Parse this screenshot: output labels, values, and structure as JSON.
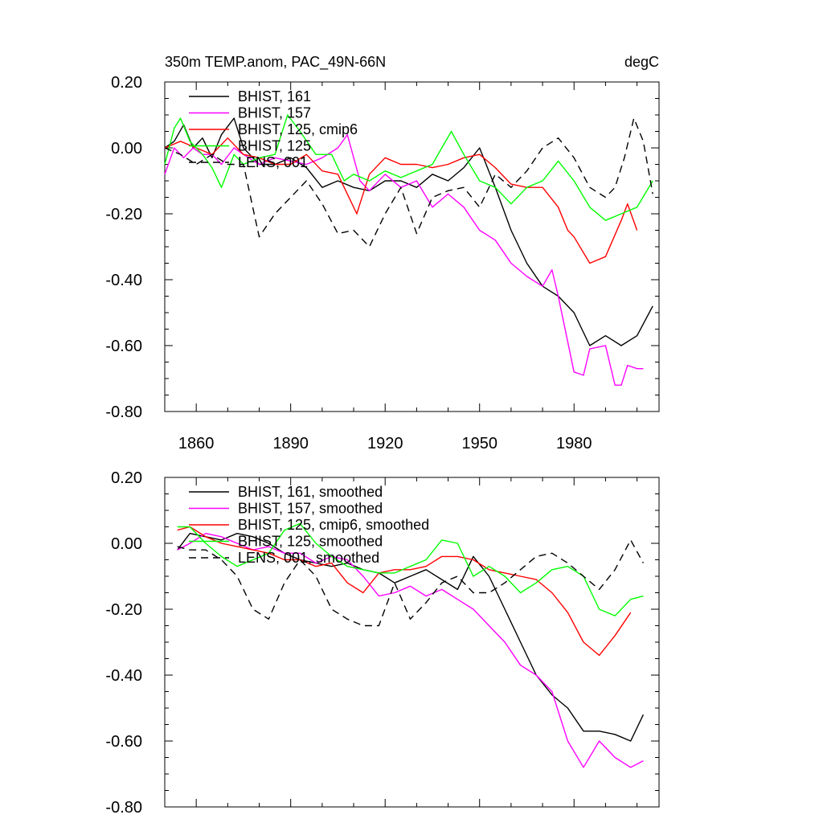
{
  "colors": {
    "black": "#000000",
    "magenta": "#ff00ff",
    "red": "#ff0000",
    "green": "#00ff00"
  },
  "chart_data": [
    {
      "type": "line",
      "title": "350m TEMP.anom, PAC_49N-66N",
      "units": "degC",
      "xlim": [
        1850,
        2007
      ],
      "ylim": [
        -0.8,
        0.2
      ],
      "xticks": [
        "1860",
        "1890",
        "1920",
        "1950",
        "1980"
      ],
      "yticks": [
        "0.20",
        "0.00",
        "-0.20",
        "-0.40",
        "-0.60",
        "-0.80"
      ],
      "legend_position": "top-left",
      "series": [
        {
          "name": "BHIST, 161",
          "color": "#000000",
          "dash": false,
          "x": [
            1850,
            1853,
            1856,
            1859,
            1862,
            1865,
            1868,
            1872,
            1875,
            1880,
            1885,
            1890,
            1895,
            1900,
            1905,
            1910,
            1915,
            1920,
            1925,
            1930,
            1935,
            1940,
            1945,
            1950,
            1955,
            1960,
            1965,
            1970,
            1975,
            1980,
            1985,
            1990,
            1995,
            2000,
            2005
          ],
          "y": [
            0.0,
            0.02,
            0.07,
            0.0,
            0.03,
            -0.03,
            0.04,
            0.09,
            0.0,
            -0.05,
            -0.05,
            -0.03,
            -0.06,
            -0.12,
            -0.1,
            -0.12,
            -0.13,
            -0.1,
            -0.1,
            -0.12,
            -0.08,
            -0.1,
            -0.06,
            0.0,
            -0.12,
            -0.25,
            -0.35,
            -0.42,
            -0.45,
            -0.5,
            -0.6,
            -0.57,
            -0.6,
            -0.57,
            -0.48
          ]
        },
        {
          "name": "BHIST, 157",
          "color": "#ff00ff",
          "dash": false,
          "x": [
            1850,
            1853,
            1856,
            1859,
            1862,
            1865,
            1868,
            1872,
            1875,
            1880,
            1885,
            1890,
            1895,
            1900,
            1905,
            1908,
            1912,
            1915,
            1920,
            1925,
            1930,
            1935,
            1940,
            1945,
            1950,
            1955,
            1960,
            1965,
            1970,
            1973,
            1975,
            1980,
            1983,
            1985,
            1990,
            1993,
            1995,
            1997,
            2000,
            2002
          ],
          "y": [
            -0.08,
            0.0,
            -0.03,
            0.0,
            -0.02,
            -0.02,
            -0.05,
            0.0,
            -0.02,
            -0.05,
            -0.03,
            -0.04,
            -0.05,
            -0.03,
            0.0,
            0.04,
            -0.1,
            -0.13,
            -0.08,
            -0.12,
            -0.1,
            -0.18,
            -0.14,
            -0.18,
            -0.25,
            -0.28,
            -0.35,
            -0.39,
            -0.42,
            -0.37,
            -0.45,
            -0.68,
            -0.69,
            -0.61,
            -0.6,
            -0.72,
            -0.72,
            -0.66,
            -0.67,
            -0.67
          ]
        },
        {
          "name": "BHIST, 125, cmip6",
          "color": "#ff0000",
          "dash": false,
          "x": [
            1850,
            1855,
            1860,
            1865,
            1870,
            1875,
            1880,
            1885,
            1890,
            1895,
            1900,
            1905,
            1908,
            1911,
            1915,
            1920,
            1925,
            1930,
            1935,
            1940,
            1945,
            1950,
            1955,
            1960,
            1965,
            1970,
            1975,
            1978,
            1980,
            1985,
            1990,
            1995,
            1997,
            2000
          ],
          "y": [
            0.0,
            0.02,
            0.0,
            -0.02,
            0.03,
            -0.02,
            -0.03,
            -0.05,
            -0.05,
            -0.02,
            -0.07,
            -0.08,
            -0.14,
            -0.2,
            -0.08,
            -0.03,
            -0.05,
            -0.05,
            -0.06,
            -0.05,
            -0.03,
            -0.02,
            -0.06,
            -0.11,
            -0.12,
            -0.12,
            -0.18,
            -0.25,
            -0.27,
            -0.35,
            -0.33,
            -0.22,
            -0.17,
            -0.25
          ]
        },
        {
          "name": "BHIST, 125",
          "color": "#00ff00",
          "dash": false,
          "x": [
            1850,
            1853,
            1855,
            1858,
            1862,
            1865,
            1868,
            1872,
            1875,
            1880,
            1885,
            1889,
            1893,
            1898,
            1903,
            1907,
            1910,
            1915,
            1920,
            1925,
            1930,
            1935,
            1938,
            1941,
            1945,
            1950,
            1955,
            1960,
            1965,
            1970,
            1975,
            1980,
            1985,
            1990,
            1995,
            2000,
            2005
          ],
          "y": [
            -0.05,
            0.06,
            0.09,
            0.02,
            -0.02,
            -0.06,
            -0.12,
            -0.02,
            -0.05,
            -0.03,
            -0.02,
            0.1,
            0.05,
            -0.02,
            -0.02,
            -0.1,
            -0.08,
            -0.1,
            -0.07,
            -0.09,
            -0.07,
            -0.05,
            0.0,
            0.05,
            -0.02,
            -0.1,
            -0.12,
            -0.17,
            -0.12,
            -0.1,
            -0.04,
            -0.1,
            -0.18,
            -0.22,
            -0.2,
            -0.18,
            -0.1
          ]
        },
        {
          "name": "LENS, 001",
          "color": "#000000",
          "dash": true,
          "x": [
            1850,
            1855,
            1860,
            1865,
            1870,
            1875,
            1880,
            1885,
            1890,
            1895,
            1900,
            1905,
            1910,
            1915,
            1920,
            1925,
            1930,
            1935,
            1940,
            1945,
            1950,
            1955,
            1960,
            1965,
            1970,
            1975,
            1980,
            1985,
            1990,
            1993,
            1996,
            1999,
            2002,
            2005
          ],
          "y": [
            0.0,
            -0.02,
            -0.05,
            -0.02,
            -0.05,
            -0.05,
            -0.27,
            -0.2,
            -0.15,
            -0.1,
            -0.17,
            -0.26,
            -0.25,
            -0.3,
            -0.2,
            -0.12,
            -0.26,
            -0.15,
            -0.13,
            -0.12,
            -0.18,
            -0.08,
            -0.12,
            -0.07,
            0.0,
            0.03,
            -0.03,
            -0.12,
            -0.15,
            -0.12,
            -0.03,
            0.09,
            0.02,
            -0.14
          ]
        }
      ]
    },
    {
      "type": "line",
      "title": "",
      "xlim": [
        1850,
        2007
      ],
      "ylim": [
        -0.8,
        0.2
      ],
      "yticks": [
        "0.20",
        "0.00",
        "-0.20",
        "-0.40",
        "-0.60",
        "-0.80"
      ],
      "legend_position": "top-left",
      "series": [
        {
          "name": "BHIST, 161, smoothed",
          "color": "#000000",
          "dash": false,
          "x": [
            1854,
            1858,
            1863,
            1868,
            1873,
            1878,
            1883,
            1888,
            1893,
            1898,
            1903,
            1908,
            1913,
            1918,
            1923,
            1928,
            1933,
            1938,
            1943,
            1948,
            1953,
            1958,
            1963,
            1968,
            1973,
            1978,
            1983,
            1988,
            1993,
            1998,
            2002
          ],
          "y": [
            -0.02,
            0.03,
            0.02,
            0.01,
            0.03,
            0.02,
            0.0,
            -0.03,
            -0.05,
            -0.06,
            -0.07,
            -0.06,
            -0.08,
            -0.09,
            -0.12,
            -0.1,
            -0.08,
            -0.11,
            -0.14,
            -0.04,
            -0.1,
            -0.2,
            -0.3,
            -0.4,
            -0.46,
            -0.5,
            -0.57,
            -0.57,
            -0.58,
            -0.6,
            -0.52
          ]
        },
        {
          "name": "BHIST, 157, smoothed",
          "color": "#ff00ff",
          "dash": false,
          "x": [
            1854,
            1858,
            1863,
            1868,
            1873,
            1878,
            1883,
            1888,
            1893,
            1898,
            1903,
            1908,
            1913,
            1918,
            1923,
            1928,
            1933,
            1938,
            1943,
            1948,
            1953,
            1958,
            1963,
            1968,
            1973,
            1978,
            1983,
            1988,
            1993,
            1998,
            2002
          ],
          "y": [
            -0.02,
            0.0,
            0.03,
            0.02,
            0.0,
            -0.02,
            -0.01,
            -0.03,
            -0.03,
            -0.06,
            -0.04,
            -0.05,
            -0.1,
            -0.16,
            -0.15,
            -0.13,
            -0.16,
            -0.14,
            -0.17,
            -0.2,
            -0.25,
            -0.3,
            -0.37,
            -0.4,
            -0.45,
            -0.6,
            -0.68,
            -0.6,
            -0.65,
            -0.68,
            -0.66
          ]
        },
        {
          "name": "BHIST, 125, cmip6, smoothed",
          "color": "#ff0000",
          "dash": false,
          "x": [
            1854,
            1858,
            1863,
            1868,
            1873,
            1878,
            1883,
            1888,
            1893,
            1898,
            1903,
            1908,
            1913,
            1918,
            1923,
            1928,
            1933,
            1938,
            1943,
            1948,
            1953,
            1958,
            1963,
            1968,
            1973,
            1978,
            1983,
            1988,
            1993,
            1998
          ],
          "y": [
            0.04,
            0.05,
            0.02,
            0.0,
            -0.01,
            -0.02,
            -0.03,
            -0.05,
            -0.05,
            -0.07,
            -0.06,
            -0.12,
            -0.15,
            -0.09,
            -0.08,
            -0.08,
            -0.07,
            -0.04,
            -0.04,
            -0.05,
            -0.08,
            -0.09,
            -0.1,
            -0.11,
            -0.15,
            -0.21,
            -0.3,
            -0.34,
            -0.28,
            -0.21
          ]
        },
        {
          "name": "BHIST, 125, smoothed",
          "color": "#00ff00",
          "dash": false,
          "x": [
            1854,
            1858,
            1863,
            1868,
            1873,
            1878,
            1883,
            1888,
            1893,
            1898,
            1903,
            1908,
            1913,
            1918,
            1923,
            1928,
            1933,
            1938,
            1943,
            1948,
            1953,
            1958,
            1963,
            1968,
            1973,
            1978,
            1983,
            1988,
            1993,
            1998,
            2002
          ],
          "y": [
            0.05,
            0.05,
            0.0,
            -0.04,
            -0.07,
            -0.05,
            -0.03,
            0.04,
            0.06,
            0.0,
            -0.04,
            -0.07,
            -0.08,
            -0.09,
            -0.09,
            -0.07,
            -0.05,
            0.01,
            0.0,
            -0.1,
            -0.07,
            -0.1,
            -0.15,
            -0.12,
            -0.08,
            -0.07,
            -0.1,
            -0.2,
            -0.22,
            -0.17,
            -0.16
          ]
        },
        {
          "name": "LENS, 001, smoothed",
          "color": "#000000",
          "dash": true,
          "x": [
            1854,
            1858,
            1863,
            1868,
            1873,
            1878,
            1883,
            1888,
            1893,
            1898,
            1903,
            1908,
            1913,
            1918,
            1923,
            1928,
            1933,
            1938,
            1943,
            1948,
            1953,
            1958,
            1963,
            1968,
            1973,
            1978,
            1983,
            1988,
            1993,
            1998,
            2002
          ],
          "y": [
            -0.01,
            -0.02,
            -0.02,
            -0.05,
            -0.1,
            -0.2,
            -0.23,
            -0.12,
            -0.05,
            -0.1,
            -0.2,
            -0.23,
            -0.25,
            -0.25,
            -0.12,
            -0.23,
            -0.18,
            -0.12,
            -0.1,
            -0.15,
            -0.15,
            -0.12,
            -0.08,
            -0.04,
            -0.03,
            -0.06,
            -0.1,
            -0.14,
            -0.08,
            0.01,
            -0.06
          ]
        }
      ]
    }
  ]
}
